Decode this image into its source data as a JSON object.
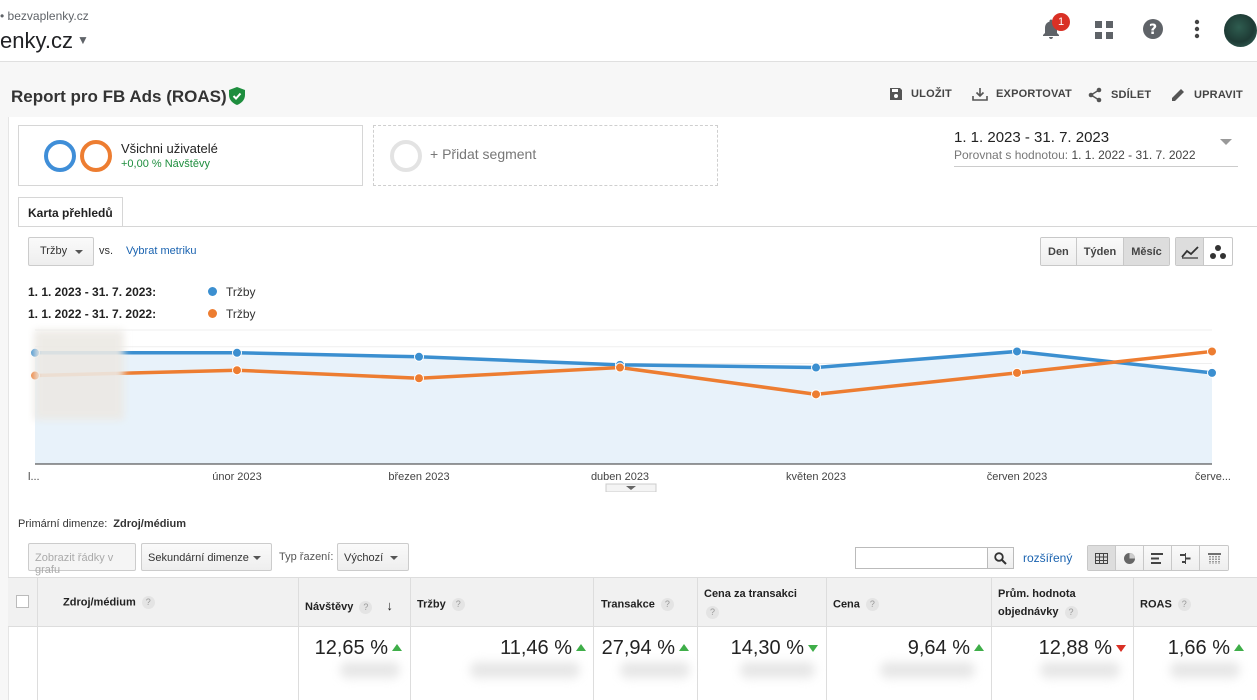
{
  "header": {
    "property_url": "bezvaplenky.cz",
    "account_name": "enky.cz",
    "notification_count": "1"
  },
  "report": {
    "title": "Report pro FB Ads (ROAS)",
    "actions": {
      "save": "ULOŽIT",
      "export": "EXPORTOVAT",
      "share": "SDÍLET",
      "edit": "UPRAVIT"
    }
  },
  "segments": {
    "all_users": "Všichni uživatelé",
    "all_users_sub": "+0,00 % Návštěvy",
    "add_segment": "+ Přidat segment"
  },
  "date": {
    "range": "1. 1. 2023 - 31. 7. 2023",
    "compare_label": "Porovnat s hodnotou:",
    "compare_range": "1. 1. 2022 - 31. 7. 2022"
  },
  "tab": "Karta přehledů",
  "chart_controls": {
    "metric": "Tržby",
    "vs": "vs.",
    "pick_metric": "Vybrat metriku",
    "granularity": [
      "Den",
      "Týden",
      "Měsíc"
    ]
  },
  "legend": [
    {
      "period": "1. 1. 2023 - 31. 7. 2023:",
      "name": "Tržby",
      "color": "#3b8fd0"
    },
    {
      "period": "1. 1. 2022 - 31. 7. 2022:",
      "name": "Tržby",
      "color": "#ed7d31"
    }
  ],
  "chart_data": {
    "type": "line",
    "categories": [
      "l...",
      "únor 2023",
      "březen 2023",
      "duben 2023",
      "květen 2023",
      "červen 2023",
      "červe..."
    ],
    "series": [
      {
        "name": "Tržby",
        "color": "#3b8fd0",
        "values": [
          0.83,
          0.83,
          0.8,
          0.74,
          0.72,
          0.84,
          0.68
        ]
      },
      {
        "name": "Tržby",
        "color": "#ed7d31",
        "values": [
          0.66,
          0.7,
          0.64,
          0.72,
          0.52,
          0.68,
          0.84
        ]
      }
    ],
    "ylim": [
      0,
      1
    ],
    "grid": true
  },
  "table_controls": {
    "primary_dim_label": "Primární dimenze:",
    "primary_dim_value": "Zdroj/médium",
    "show_rows_btn": "Zobrazit řádky v grafu",
    "secondary_dim": "Sekundární dimenze",
    "sort_label": "Typ řazení:",
    "sort_value": "Výchozí",
    "advanced": "rozšířený"
  },
  "table": {
    "columns": [
      "Zdroj/médium",
      "Návštěvy",
      "Tržby",
      "Transakce",
      "Cena za transakci",
      "Cena",
      "Prům. hodnota objednávky",
      "ROAS"
    ],
    "totals": [
      {
        "value": "12,65 %",
        "dir": "up"
      },
      {
        "value": "11,46 %",
        "dir": "up"
      },
      {
        "value": "27,94 %",
        "dir": "up"
      },
      {
        "value": "14,30 %",
        "dir": "down-green"
      },
      {
        "value": "9,64 %",
        "dir": "up"
      },
      {
        "value": "12,88 %",
        "dir": "down"
      },
      {
        "value": "1,66 %",
        "dir": "up"
      }
    ]
  }
}
